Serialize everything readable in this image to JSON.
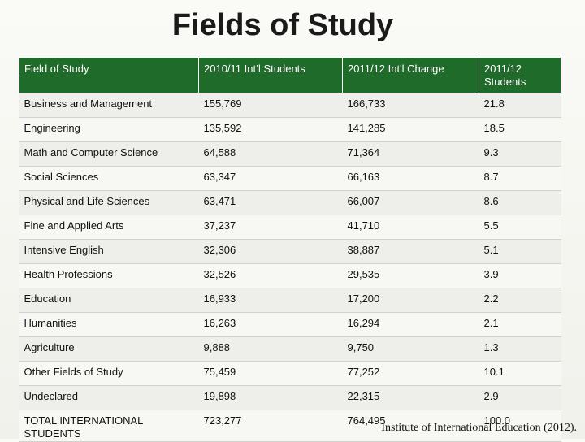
{
  "title": "Fields of Study",
  "table": {
    "headers": [
      "Field of Study",
      "2010/11 Int’l Students",
      "2011/12 Int'l Change",
      "2011/12 Students"
    ],
    "rows": [
      [
        "Business and Management",
        "155,769",
        "166,733",
        "21.8"
      ],
      [
        "Engineering",
        "135,592",
        "141,285",
        "18.5"
      ],
      [
        "Math and Computer Science",
        "64,588",
        "71,364",
        "9.3"
      ],
      [
        "Social Sciences",
        "63,347",
        "66,163",
        "8.7"
      ],
      [
        "Physical and Life Sciences",
        "63,471",
        "66,007",
        "8.6"
      ],
      [
        "Fine and Applied Arts",
        "37,237",
        "41,710",
        "5.5"
      ],
      [
        "Intensive English",
        "32,306",
        "38,887",
        "5.1"
      ],
      [
        "Health Professions",
        "32,526",
        "29,535",
        "3.9"
      ],
      [
        "Education",
        "16,933",
        "17,200",
        "2.2"
      ],
      [
        "Humanities",
        "16,263",
        "16,294",
        "2.1"
      ],
      [
        "Agriculture",
        "9,888",
        "9,750",
        "1.3"
      ],
      [
        "Other Fields of Study",
        "75,459",
        "77,252",
        "10.1"
      ],
      [
        "Undeclared",
        "19,898",
        "22,315",
        "2.9"
      ],
      [
        "TOTAL   INTERNATIONAL STUDENTS",
        "723,277",
        "764,495",
        "100.0"
      ]
    ]
  },
  "source": "Institute of International Education (2012).",
  "colors": {
    "header_bg": "#1f6c2a",
    "header_text": "#ffffff"
  }
}
